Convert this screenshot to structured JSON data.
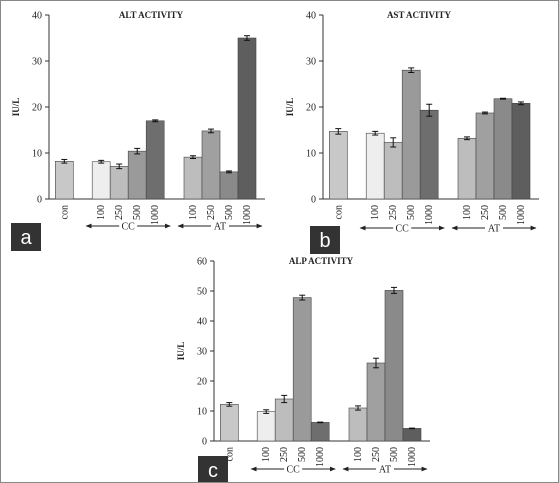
{
  "chart_data": [
    {
      "type": "bar",
      "title": "ALT ACTIVITY",
      "ylabel": "IU/L",
      "panel": "a",
      "categories": [
        "con",
        "100",
        "250",
        "500",
        "1000",
        "100",
        "250",
        "500",
        "1000"
      ],
      "group_labels": [
        "CC",
        "AT"
      ],
      "values": [
        8.2,
        8.1,
        7.1,
        10.4,
        17,
        9.1,
        14.8,
        5.9,
        35
      ],
      "errors": [
        0.4,
        0.3,
        0.5,
        0.6,
        0.2,
        0.3,
        0.4,
        0.2,
        0.5
      ],
      "colors": [
        "#c8c8c8",
        "#eeeeee",
        "#bdbdbd",
        "#9a9a9a",
        "#6e6e6e",
        "#bdbdbd",
        "#a0a0a0",
        "#8a8a8a",
        "#5e5e5e"
      ],
      "ylim": [
        0,
        40
      ],
      "yticks": [
        0,
        10,
        20,
        30,
        40
      ]
    },
    {
      "type": "bar",
      "title": "AST ACTIVITY",
      "ylabel": "IU/L",
      "panel": "b",
      "categories": [
        "con",
        "100",
        "250",
        "500",
        "1000",
        "100",
        "250",
        "500",
        "1000"
      ],
      "group_labels": [
        "CC",
        "AT"
      ],
      "values": [
        14.7,
        14.3,
        12.3,
        28,
        19.3,
        13.2,
        18.7,
        21.8,
        20.8
      ],
      "errors": [
        0.6,
        0.4,
        1.0,
        0.5,
        1.3,
        0.3,
        0.2,
        0.1,
        0.3
      ],
      "colors": [
        "#c8c8c8",
        "#eeeeee",
        "#bdbdbd",
        "#9a9a9a",
        "#6e6e6e",
        "#bdbdbd",
        "#a0a0a0",
        "#8a8a8a",
        "#5e5e5e"
      ],
      "ylim": [
        0,
        40
      ],
      "yticks": [
        0,
        10,
        20,
        30,
        40
      ]
    },
    {
      "type": "bar",
      "title": "ALP ACTIVITY",
      "ylabel": "IU/L",
      "panel": "c",
      "categories": [
        "con",
        "100",
        "250",
        "500",
        "1000",
        "100",
        "250",
        "500",
        "1000"
      ],
      "group_labels": [
        "CC",
        "AT"
      ],
      "values": [
        12.2,
        9.8,
        14,
        47.8,
        6.2,
        11,
        26,
        50.2,
        4.2
      ],
      "errors": [
        0.6,
        0.6,
        1.2,
        0.8,
        0.1,
        0.7,
        1.6,
        1.0,
        0.1
      ],
      "colors": [
        "#c8c8c8",
        "#eeeeee",
        "#bdbdbd",
        "#9a9a9a",
        "#6e6e6e",
        "#bdbdbd",
        "#a0a0a0",
        "#8a8a8a",
        "#5e5e5e"
      ],
      "ylim": [
        0,
        60
      ],
      "yticks": [
        0,
        10,
        20,
        30,
        40,
        50,
        60
      ]
    }
  ]
}
